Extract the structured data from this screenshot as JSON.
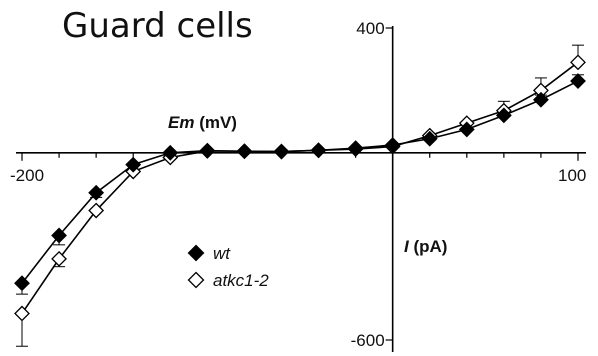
{
  "chart_data": {
    "type": "line",
    "title": "Guard cells",
    "xlabel_var": "Em",
    "xlabel_unit": "(mV)",
    "ylabel_var": "I",
    "ylabel_unit": "(pA)",
    "xlim": [
      -200,
      100
    ],
    "ylim": [
      -600,
      400
    ],
    "x_tick_labels": [
      "-200",
      "100"
    ],
    "y_tick_labels": [
      "400",
      "-600"
    ],
    "x": [
      -200,
      -180,
      -160,
      -140,
      -120,
      -100,
      -80,
      -60,
      -40,
      -20,
      0,
      20,
      40,
      60,
      80,
      100
    ],
    "series": [
      {
        "name": "wt",
        "marker": "filled-diamond",
        "values": [
          -418,
          -265,
          -128,
          -38,
          0,
          7,
          5,
          4,
          8,
          15,
          25,
          45,
          75,
          120,
          170,
          230
        ],
        "errors": [
          35,
          30,
          15,
          10,
          8,
          6,
          5,
          5,
          5,
          5,
          5,
          8,
          10,
          12,
          15,
          20
        ]
      },
      {
        "name": "atkc1-2",
        "marker": "open-diamond",
        "values": [
          -515,
          -340,
          -185,
          -60,
          -15,
          6,
          5,
          4,
          8,
          12,
          20,
          55,
          95,
          135,
          200,
          290
        ],
        "errors": [
          105,
          25,
          12,
          10,
          8,
          6,
          5,
          5,
          5,
          5,
          5,
          8,
          10,
          30,
          40,
          55
        ]
      }
    ],
    "legend_position": "bottom-left",
    "grid": false
  }
}
